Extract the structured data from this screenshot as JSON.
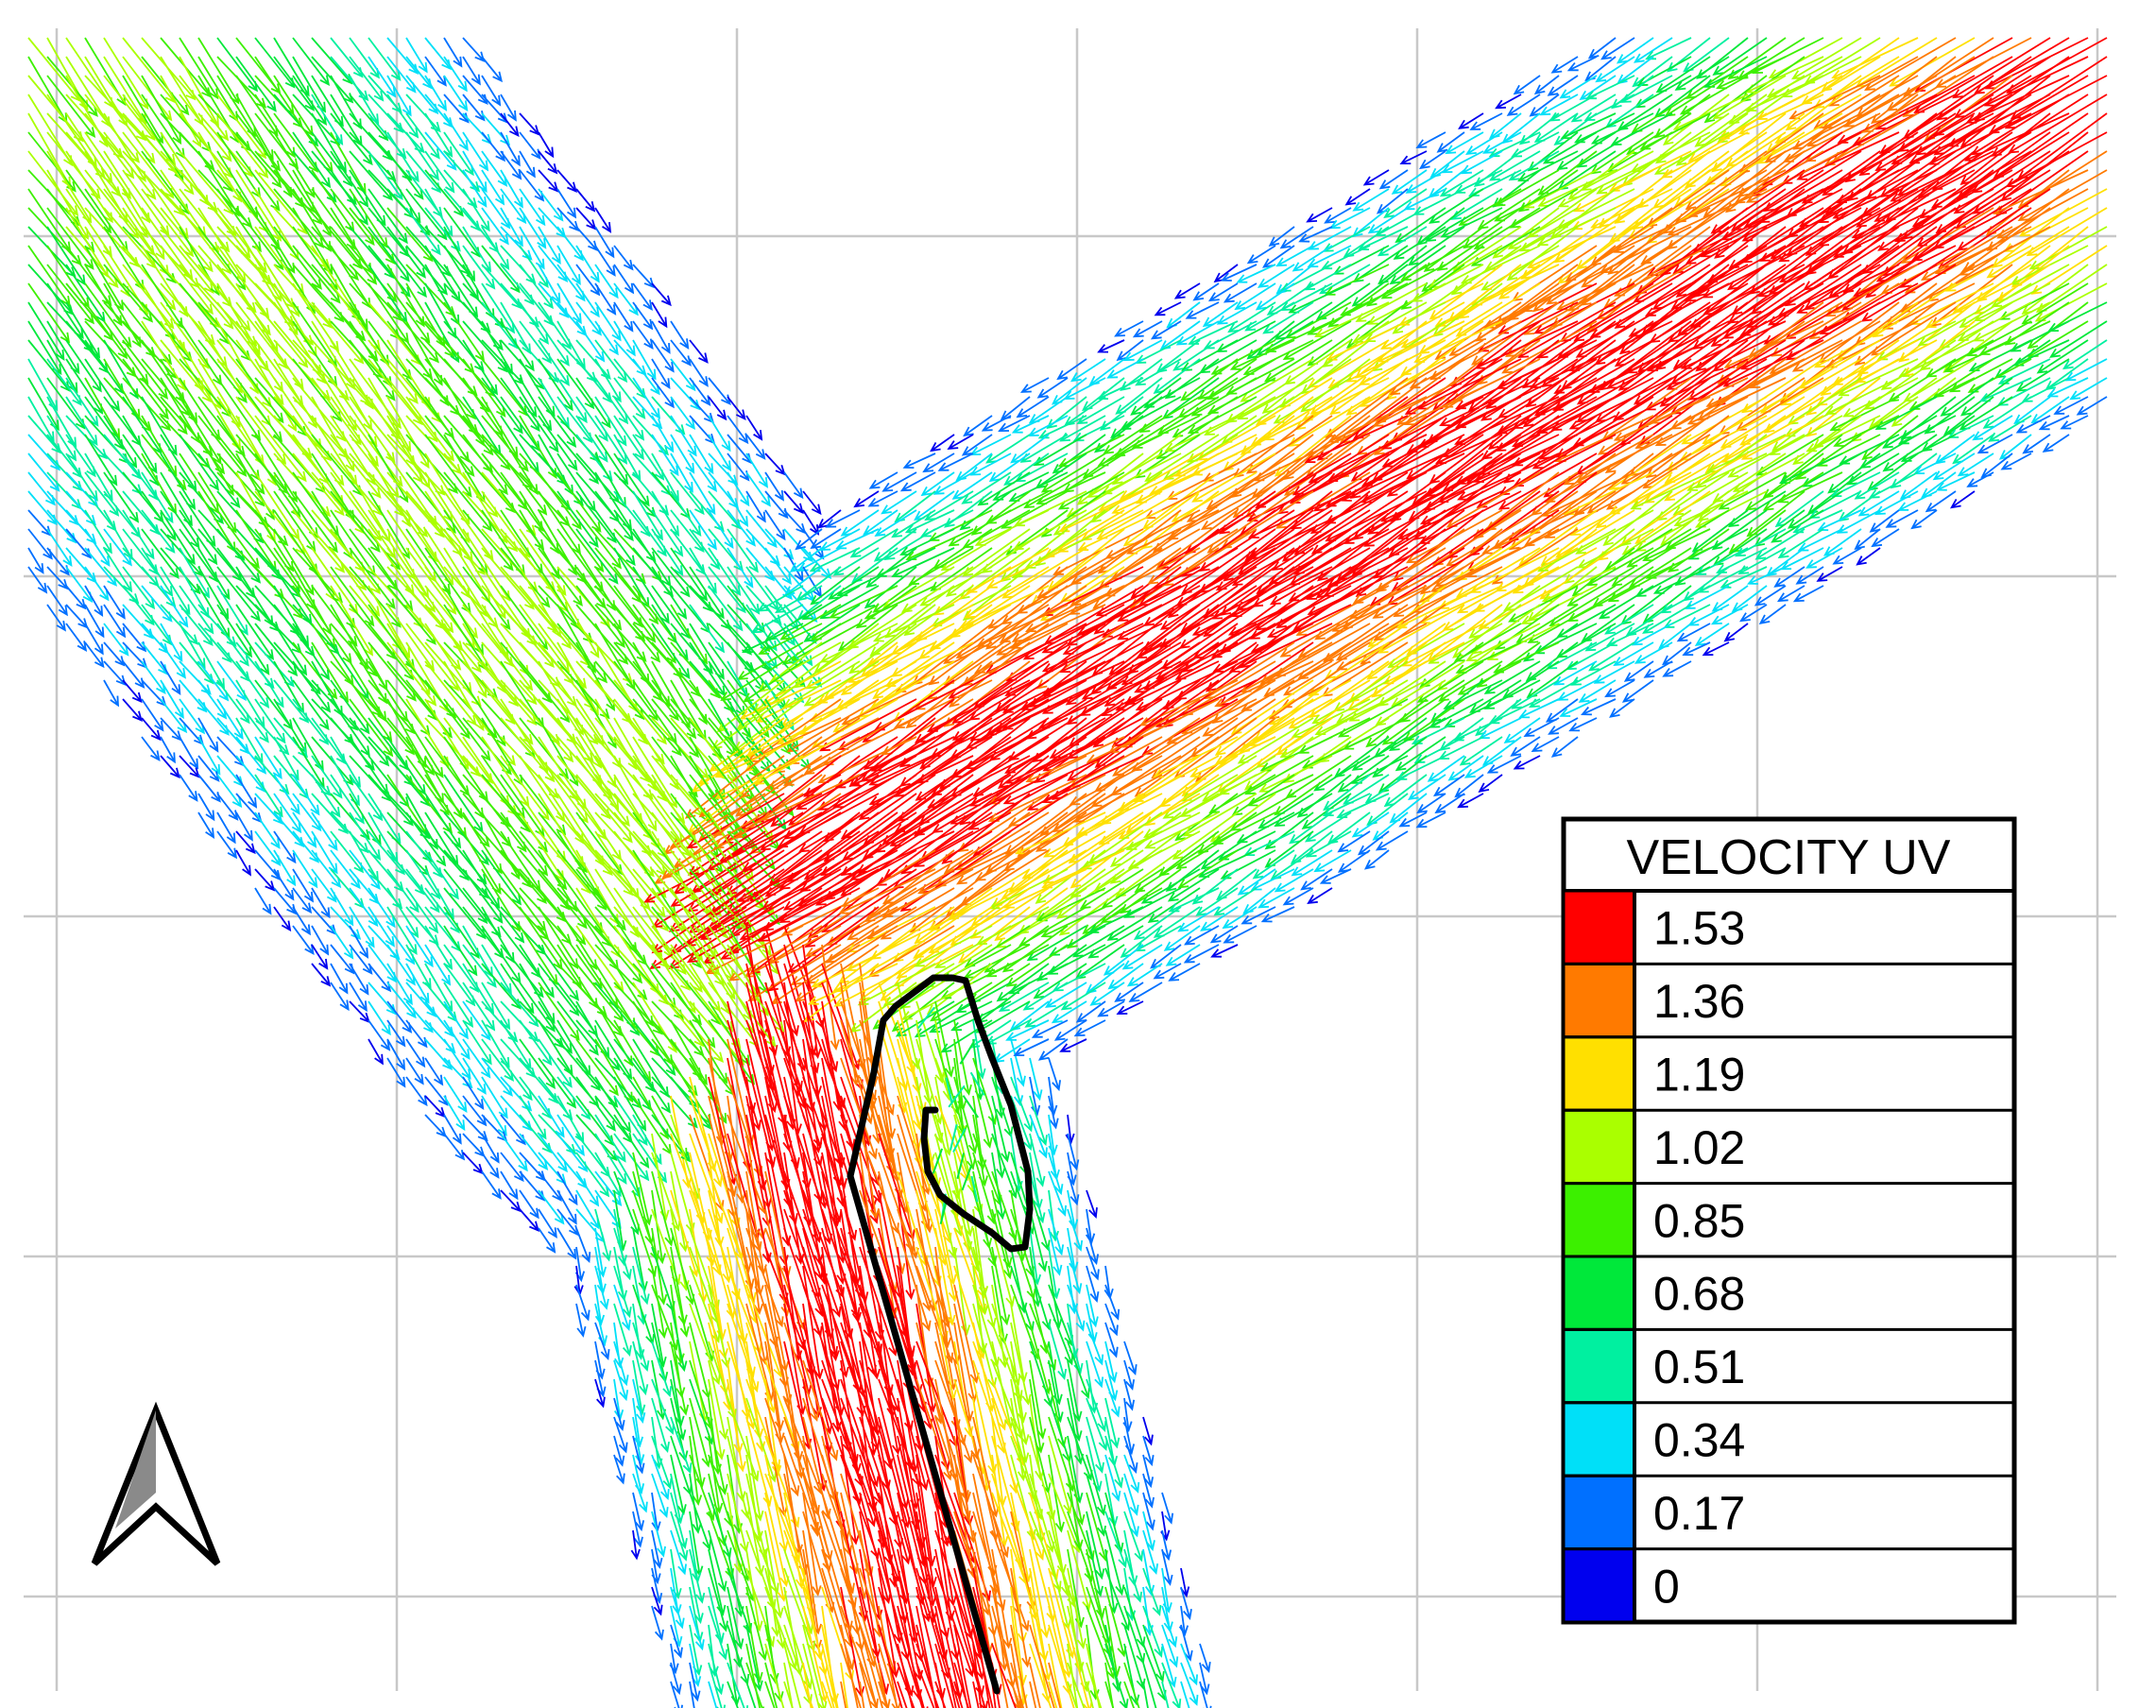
{
  "legend": {
    "title": "VELOCITY UV",
    "entries": [
      {
        "label": "1.53",
        "color": "#ff0000"
      },
      {
        "label": "1.36",
        "color": "#ff7a00"
      },
      {
        "label": "1.19",
        "color": "#ffe000"
      },
      {
        "label": "1.02",
        "color": "#aaff00"
      },
      {
        "label": "0.85",
        "color": "#3cf000"
      },
      {
        "label": "0.68",
        "color": "#00e83a"
      },
      {
        "label": "0.51",
        "color": "#00f0a0"
      },
      {
        "label": "0.34",
        "color": "#00e0f8"
      },
      {
        "label": "0.17",
        "color": "#0070ff"
      },
      {
        "label": "0",
        "color": "#0000ee"
      }
    ]
  },
  "north_arrow_icon": "north-arrow-icon",
  "grid": true,
  "colors": {
    "grid": "#c8c8c8",
    "outline": "#000000",
    "background": "#ffffff"
  }
}
